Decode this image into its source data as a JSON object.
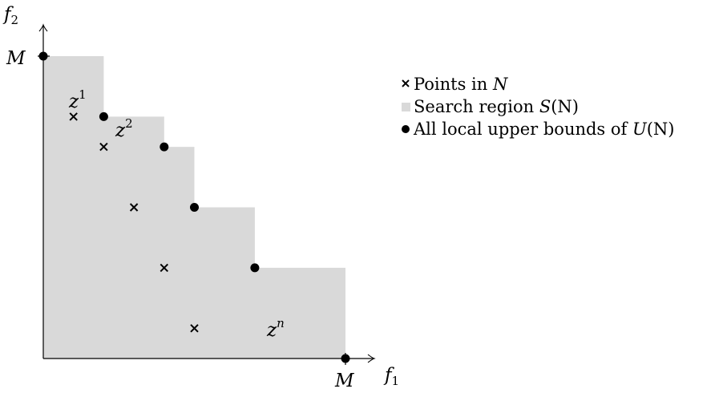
{
  "axes": {
    "x_label": "f",
    "x_label_sub": "1",
    "y_label": "f",
    "y_label_sub": "2",
    "x_max_label": "M",
    "y_max_label": "M"
  },
  "points_in_N": [
    [
      1,
      8
    ],
    [
      2,
      7
    ],
    [
      3,
      5
    ],
    [
      4,
      3
    ],
    [
      5,
      1
    ]
  ],
  "local_upper_bounds": [
    [
      0,
      10
    ],
    [
      2,
      8
    ],
    [
      4,
      7
    ],
    [
      5,
      5
    ],
    [
      7,
      3
    ],
    [
      10,
      0
    ]
  ],
  "point_labels": [
    {
      "text": "z",
      "sup": "1"
    },
    {
      "text": "z",
      "sup": "2"
    },
    {
      "text": "z",
      "sup": "n"
    }
  ],
  "legend": [
    {
      "marker": "cross",
      "text": "Points in ",
      "math": "N",
      "tail": ""
    },
    {
      "marker": "square",
      "text": "Search region ",
      "math": "S",
      "tail": "(N)"
    },
    {
      "marker": "dot",
      "text": "All local upper bounds of ",
      "math": "U",
      "tail": "(N)"
    }
  ],
  "colors": {
    "region": "#d9d9d9",
    "ink": "#000000"
  }
}
